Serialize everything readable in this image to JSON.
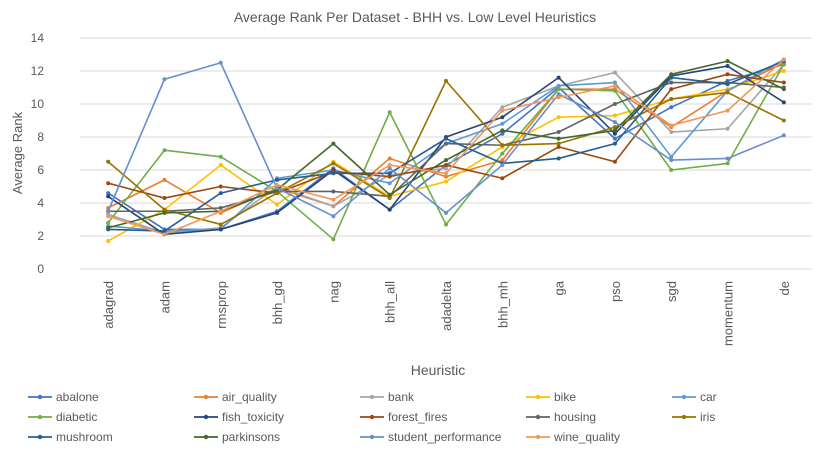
{
  "chart_data": {
    "type": "line",
    "title": "Average Rank Per Dataset - BHH vs. Low Level Heuristics",
    "xlabel": "Heuristic",
    "ylabel": "Average Rank",
    "ylim": [
      0,
      14
    ],
    "yticks": [
      0,
      2,
      4,
      6,
      8,
      10,
      12,
      14
    ],
    "grid": true,
    "legend_position": "bottom",
    "categories": [
      "adagrad",
      "adam",
      "rmsprop",
      "bhh_gd",
      "nag",
      "bhh_all",
      "adadelta",
      "bhh_mh",
      "ga",
      "pso",
      "sgd",
      "momentum",
      "de"
    ],
    "series": [
      {
        "name": "abalone",
        "color": "#4472C4",
        "values": [
          4.6,
          2.4,
          2.4,
          3.5,
          6.1,
          3.6,
          6.3,
          8.2,
          11.0,
          7.9,
          9.8,
          11.4,
          12.4
        ]
      },
      {
        "name": "air_quality",
        "color": "#ED7D31",
        "values": [
          3.7,
          5.4,
          3.4,
          4.9,
          3.8,
          6.7,
          5.6,
          6.6,
          10.9,
          10.9,
          8.6,
          10.8,
          12.5
        ]
      },
      {
        "name": "bank",
        "color": "#A5A5A5",
        "values": [
          3.3,
          2.2,
          2.5,
          5.0,
          3.8,
          5.7,
          6.1,
          9.8,
          11.1,
          11.9,
          8.3,
          8.5,
          12.4
        ]
      },
      {
        "name": "bike",
        "color": "#FFC000",
        "values": [
          1.7,
          3.6,
          6.3,
          3.9,
          6.5,
          4.4,
          5.3,
          7.4,
          9.2,
          9.3,
          10.3,
          10.9,
          12.0
        ]
      },
      {
        "name": "car",
        "color": "#5B9BD5",
        "values": [
          2.6,
          2.3,
          2.4,
          5.5,
          6.0,
          5.2,
          7.6,
          8.8,
          11.1,
          11.3,
          6.8,
          10.8,
          12.7
        ]
      },
      {
        "name": "diabetic",
        "color": "#70AD47",
        "values": [
          2.8,
          7.2,
          6.8,
          4.7,
          1.8,
          9.5,
          2.7,
          7.0,
          10.9,
          10.8,
          6.0,
          6.4,
          12.4
        ]
      },
      {
        "name": "fish_toxicity",
        "color": "#264478",
        "values": [
          4.4,
          2.1,
          2.4,
          3.4,
          6.0,
          3.6,
          8.0,
          9.2,
          11.6,
          8.2,
          11.7,
          12.3,
          10.1
        ]
      },
      {
        "name": "forest_fires",
        "color": "#9E480E",
        "values": [
          5.2,
          4.3,
          5.0,
          4.6,
          5.9,
          5.6,
          6.3,
          5.5,
          7.4,
          6.5,
          10.9,
          11.8,
          11.3
        ]
      },
      {
        "name": "housing",
        "color": "#636363",
        "values": [
          3.5,
          3.5,
          3.7,
          4.7,
          4.7,
          4.4,
          7.6,
          7.5,
          8.3,
          10.0,
          11.3,
          11.3,
          11.0
        ]
      },
      {
        "name": "iris",
        "color": "#997300",
        "values": [
          6.5,
          3.6,
          2.7,
          4.6,
          6.4,
          4.3,
          11.4,
          7.5,
          7.6,
          8.6,
          10.3,
          10.7,
          9.0
        ]
      },
      {
        "name": "mushroom",
        "color": "#255E91",
        "values": [
          2.4,
          2.3,
          4.6,
          5.4,
          5.8,
          5.8,
          7.9,
          6.4,
          6.7,
          7.6,
          11.6,
          11.2,
          12.6
        ]
      },
      {
        "name": "parkinsons",
        "color": "#43682B",
        "values": [
          2.5,
          3.4,
          3.5,
          4.8,
          7.6,
          4.5,
          6.6,
          8.4,
          7.9,
          8.4,
          11.8,
          12.6,
          10.9
        ]
      },
      {
        "name": "student_performance",
        "color": "#698ED0",
        "values": [
          3.5,
          11.5,
          12.5,
          4.9,
          3.2,
          6.1,
          3.4,
          6.3,
          10.6,
          8.9,
          6.6,
          6.7,
          8.1
        ]
      },
      {
        "name": "wine_quality",
        "color": "#F1975A",
        "values": [
          3.2,
          2.1,
          3.5,
          5.1,
          4.2,
          6.3,
          5.8,
          9.6,
          10.4,
          11.1,
          8.7,
          9.6,
          12.7
        ]
      }
    ]
  }
}
